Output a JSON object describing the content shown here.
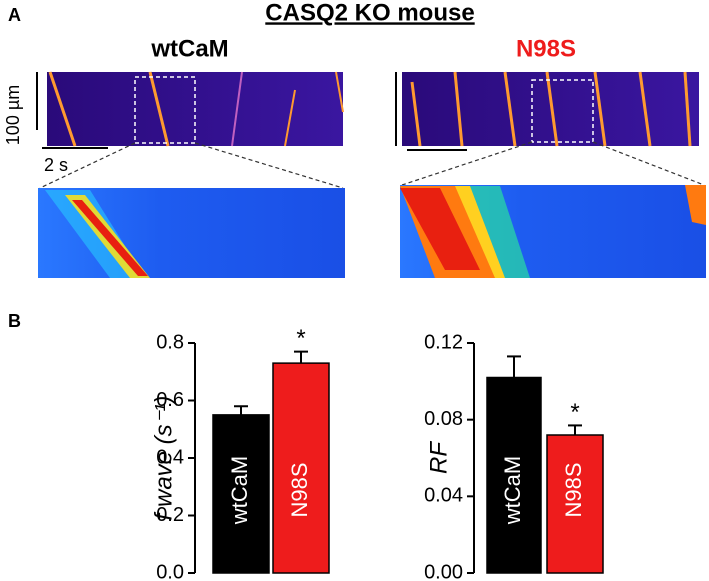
{
  "panel_a": {
    "label": "A",
    "title": "CASQ2 KO mouse",
    "left_title": "wtCaM",
    "right_title": "N98S",
    "space_scale": "100 µm",
    "time_scale": "2 s"
  },
  "panel_b": {
    "label": "B"
  },
  "chart_data": [
    {
      "type": "bar",
      "ylabel": "f wave (s⁻¹)",
      "categories": [
        "wtCaM",
        "N98S"
      ],
      "values": [
        0.55,
        0.73
      ],
      "errors": [
        0.03,
        0.04
      ],
      "colors": [
        "#000000",
        "#ee1c1c"
      ],
      "ylim": [
        0,
        0.8
      ],
      "yticks": [
        {
          "value": 0,
          "label": "0.0"
        },
        0.2,
        0.4,
        0.6,
        0.8
      ],
      "annotations": [
        {
          "text": "*",
          "category": "N98S"
        }
      ]
    },
    {
      "type": "bar",
      "ylabel": "RF",
      "categories": [
        "wtCaM",
        "N98S"
      ],
      "values": [
        0.102,
        0.072
      ],
      "errors": [
        0.011,
        0.005
      ],
      "colors": [
        "#000000",
        "#ee1c1c"
      ],
      "ylim": [
        0,
        0.12
      ],
      "yticks": [
        {
          "value": 0,
          "label": "0.00"
        },
        {
          "value": 0.04,
          "label": "0.04"
        },
        {
          "value": 0.08,
          "label": "0.08"
        },
        {
          "value": 0.12,
          "label": "0.12"
        }
      ],
      "annotations": [
        {
          "text": "*",
          "category": "N98S"
        }
      ]
    }
  ]
}
